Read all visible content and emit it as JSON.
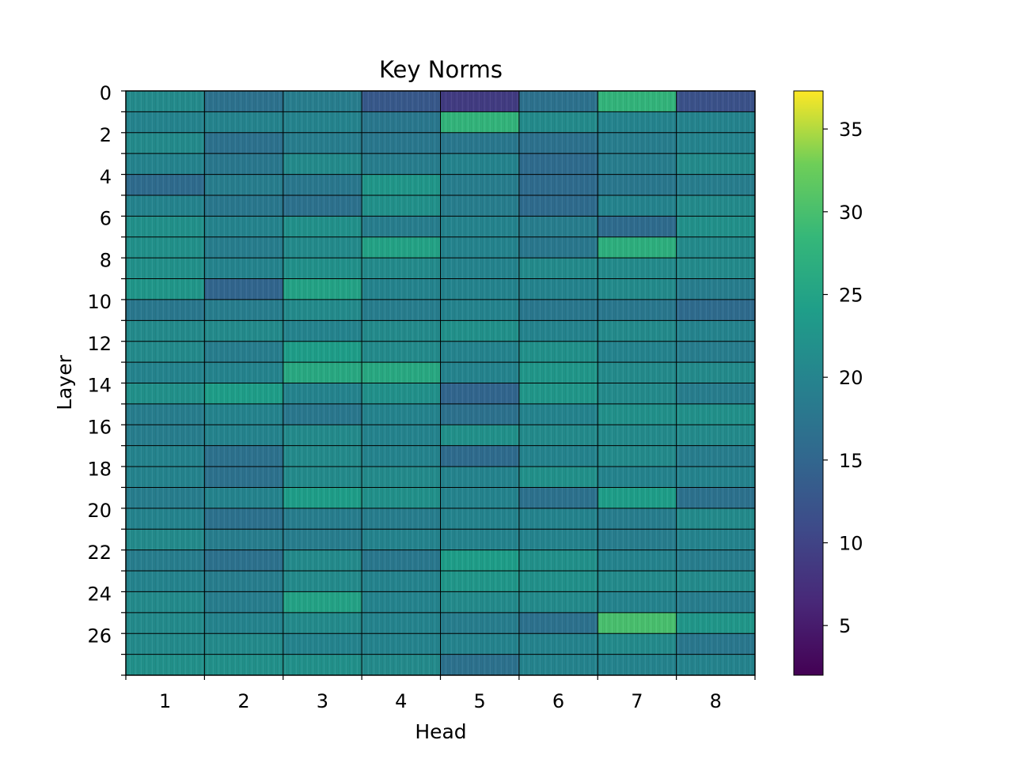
{
  "chart_data": {
    "type": "heatmap",
    "title": "Key Norms",
    "xlabel": "Head",
    "ylabel": "Layer",
    "x_ticks": [
      1,
      2,
      3,
      4,
      5,
      6,
      7,
      8
    ],
    "y_ticks": [
      0,
      2,
      4,
      6,
      8,
      10,
      12,
      14,
      16,
      18,
      20,
      22,
      24,
      26
    ],
    "num_layers": 28,
    "num_heads": 8,
    "colormap": "viridis",
    "colorbar": {
      "min": 2,
      "max": 37.3,
      "ticks": [
        5,
        10,
        15,
        20,
        25,
        30,
        35
      ]
    },
    "grid": true,
    "values": [
      [
        21,
        17,
        19,
        13,
        9,
        17,
        28,
        12
      ],
      [
        20,
        20,
        20,
        18,
        28,
        21,
        20,
        20
      ],
      [
        21,
        17,
        19,
        18,
        18,
        17,
        19,
        20
      ],
      [
        20,
        18,
        21,
        19,
        20,
        16,
        19,
        21
      ],
      [
        16,
        19,
        18,
        23,
        19,
        16,
        18,
        19
      ],
      [
        20,
        18,
        17,
        22,
        19,
        16,
        20,
        21
      ],
      [
        22,
        20,
        22,
        19,
        20,
        19,
        16,
        22
      ],
      [
        22,
        19,
        21,
        25,
        20,
        18,
        27,
        21
      ],
      [
        22,
        20,
        22,
        21,
        20,
        21,
        21,
        21
      ],
      [
        23,
        15,
        25,
        20,
        20,
        20,
        21,
        19
      ],
      [
        18,
        19,
        21,
        19,
        20,
        18,
        18,
        16
      ],
      [
        21,
        21,
        20,
        21,
        22,
        20,
        21,
        20
      ],
      [
        21,
        19,
        24,
        21,
        20,
        22,
        20,
        19
      ],
      [
        20,
        20,
        26,
        26,
        20,
        23,
        21,
        21
      ],
      [
        22,
        24,
        20,
        22,
        15,
        23,
        21,
        19
      ],
      [
        19,
        20,
        18,
        20,
        17,
        20,
        22,
        22
      ],
      [
        19,
        20,
        21,
        20,
        22,
        21,
        21,
        21
      ],
      [
        20,
        17,
        21,
        20,
        16,
        20,
        21,
        19
      ],
      [
        20,
        17,
        21,
        21,
        20,
        22,
        20,
        20
      ],
      [
        19,
        20,
        24,
        22,
        20,
        17,
        24,
        17
      ],
      [
        20,
        17,
        19,
        19,
        20,
        20,
        19,
        21
      ],
      [
        21,
        19,
        19,
        20,
        20,
        20,
        19,
        20
      ],
      [
        19,
        17,
        21,
        18,
        24,
        22,
        20,
        19
      ],
      [
        20,
        19,
        21,
        20,
        23,
        22,
        21,
        21
      ],
      [
        21,
        19,
        25,
        20,
        21,
        21,
        20,
        19
      ],
      [
        21,
        20,
        21,
        20,
        19,
        17,
        30,
        23
      ],
      [
        21,
        21,
        20,
        20,
        20,
        20,
        21,
        18
      ],
      [
        22,
        22,
        22,
        21,
        17,
        20,
        20,
        20
      ]
    ]
  }
}
